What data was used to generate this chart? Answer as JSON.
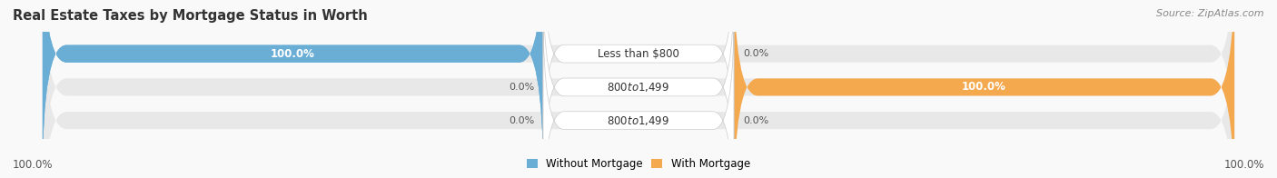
{
  "title": "Real Estate Taxes by Mortgage Status in Worth",
  "source": "Source: ZipAtlas.com",
  "rows": [
    {
      "label": "Less than $800",
      "without_mortgage": 100.0,
      "with_mortgage": 0.0
    },
    {
      "label": "$800 to $1,499",
      "without_mortgage": 0.0,
      "with_mortgage": 100.0
    },
    {
      "label": "$800 to $1,499",
      "without_mortgage": 0.0,
      "with_mortgage": 0.0
    }
  ],
  "color_without": "#6aaed6",
  "color_with": "#f5a94e",
  "color_bg_bar": "#e8e8e8",
  "color_bg_fig": "#f9f9f9",
  "bar_height": 0.52,
  "legend_without": "Without Mortgage",
  "legend_with": "With Mortgage",
  "left_footer": "100.0%",
  "right_footer": "100.0%",
  "title_fontsize": 10.5,
  "source_fontsize": 8,
  "tick_fontsize": 8.5,
  "label_fontsize": 8.5,
  "pct_fontsize": 8,
  "inner_pct_fontsize": 8.5
}
